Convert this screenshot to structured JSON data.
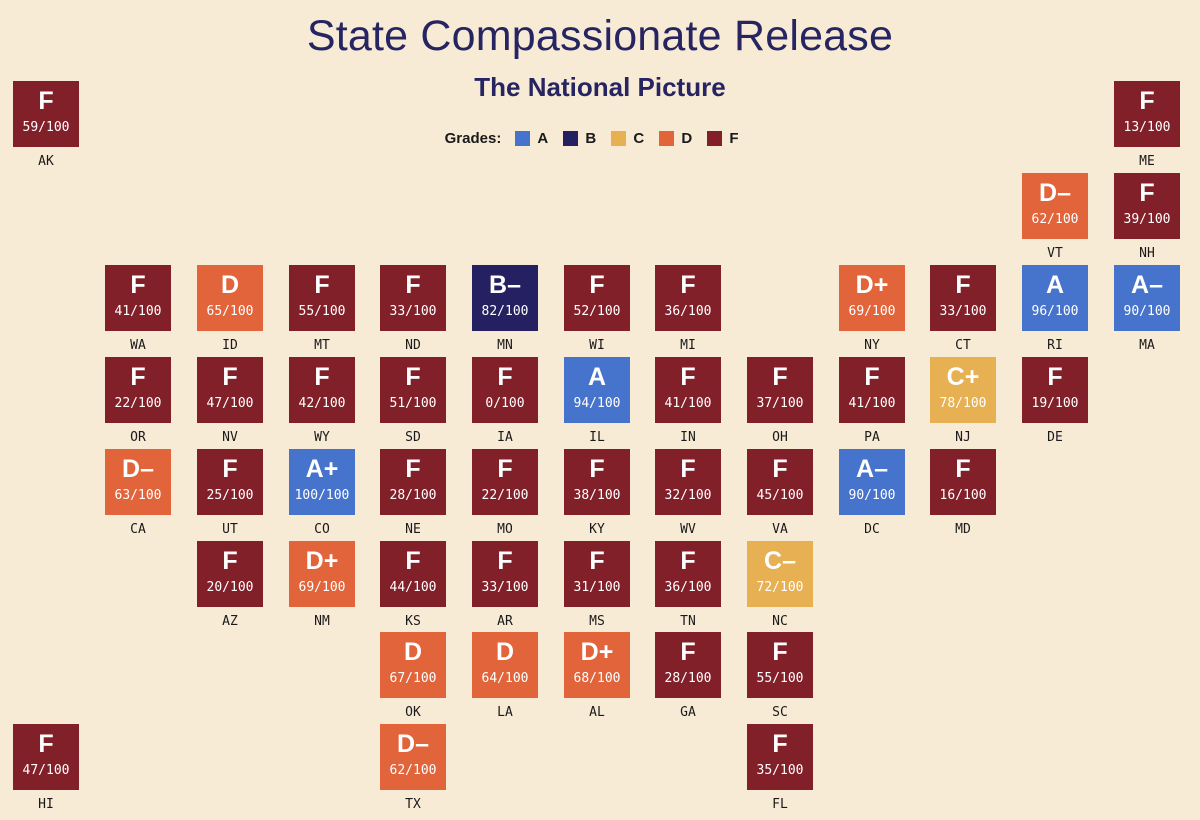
{
  "header": {
    "title": "State Compassionate Release",
    "subtitle": "The National Picture"
  },
  "legend": {
    "title": "Grades:",
    "items": [
      {
        "label": "A",
        "color": "#4673cb"
      },
      {
        "label": "B",
        "color": "#252061"
      },
      {
        "label": "C",
        "color": "#e7b052"
      },
      {
        "label": "D",
        "color": "#e1643a"
      },
      {
        "label": "F",
        "color": "#82202a"
      }
    ]
  },
  "colors": {
    "A": "#4673cb",
    "B": "#252061",
    "C": "#e7b052",
    "D": "#e1643a",
    "F": "#82202a"
  },
  "states": [
    {
      "abbr": "AK",
      "grade": "F",
      "score": "59/100"
    },
    {
      "abbr": "ME",
      "grade": "F",
      "score": "13/100"
    },
    {
      "abbr": "VT",
      "grade": "D–",
      "score": "62/100"
    },
    {
      "abbr": "NH",
      "grade": "F",
      "score": "39/100"
    },
    {
      "abbr": "WA",
      "grade": "F",
      "score": "41/100"
    },
    {
      "abbr": "ID",
      "grade": "D",
      "score": "65/100"
    },
    {
      "abbr": "MT",
      "grade": "F",
      "score": "55/100"
    },
    {
      "abbr": "ND",
      "grade": "F",
      "score": "33/100"
    },
    {
      "abbr": "MN",
      "grade": "B–",
      "score": "82/100"
    },
    {
      "abbr": "WI",
      "grade": "F",
      "score": "52/100"
    },
    {
      "abbr": "MI",
      "grade": "F",
      "score": "36/100"
    },
    {
      "abbr": "NY",
      "grade": "D+",
      "score": "69/100"
    },
    {
      "abbr": "CT",
      "grade": "F",
      "score": "33/100"
    },
    {
      "abbr": "RI",
      "grade": "A",
      "score": "96/100"
    },
    {
      "abbr": "MA",
      "grade": "A–",
      "score": "90/100"
    },
    {
      "abbr": "OR",
      "grade": "F",
      "score": "22/100"
    },
    {
      "abbr": "NV",
      "grade": "F",
      "score": "47/100"
    },
    {
      "abbr": "WY",
      "grade": "F",
      "score": "42/100"
    },
    {
      "abbr": "SD",
      "grade": "F",
      "score": "51/100"
    },
    {
      "abbr": "IA",
      "grade": "F",
      "score": "0/100"
    },
    {
      "abbr": "IL",
      "grade": "A",
      "score": "94/100"
    },
    {
      "abbr": "IN",
      "grade": "F",
      "score": "41/100"
    },
    {
      "abbr": "OH",
      "grade": "F",
      "score": "37/100"
    },
    {
      "abbr": "PA",
      "grade": "F",
      "score": "41/100"
    },
    {
      "abbr": "NJ",
      "grade": "C+",
      "score": "78/100"
    },
    {
      "abbr": "DE",
      "grade": "F",
      "score": "19/100"
    },
    {
      "abbr": "CA",
      "grade": "D–",
      "score": "63/100"
    },
    {
      "abbr": "UT",
      "grade": "F",
      "score": "25/100"
    },
    {
      "abbr": "CO",
      "grade": "A+",
      "score": "100/100"
    },
    {
      "abbr": "NE",
      "grade": "F",
      "score": "28/100"
    },
    {
      "abbr": "MO",
      "grade": "F",
      "score": "22/100"
    },
    {
      "abbr": "KY",
      "grade": "F",
      "score": "38/100"
    },
    {
      "abbr": "WV",
      "grade": "F",
      "score": "32/100"
    },
    {
      "abbr": "VA",
      "grade": "F",
      "score": "45/100"
    },
    {
      "abbr": "DC",
      "grade": "A–",
      "score": "90/100"
    },
    {
      "abbr": "MD",
      "grade": "F",
      "score": "16/100"
    },
    {
      "abbr": "AZ",
      "grade": "F",
      "score": "20/100"
    },
    {
      "abbr": "NM",
      "grade": "D+",
      "score": "69/100"
    },
    {
      "abbr": "KS",
      "grade": "F",
      "score": "44/100"
    },
    {
      "abbr": "AR",
      "grade": "F",
      "score": "33/100"
    },
    {
      "abbr": "MS",
      "grade": "F",
      "score": "31/100"
    },
    {
      "abbr": "TN",
      "grade": "F",
      "score": "36/100"
    },
    {
      "abbr": "NC",
      "grade": "C–",
      "score": "72/100"
    },
    {
      "abbr": "OK",
      "grade": "D",
      "score": "67/100"
    },
    {
      "abbr": "LA",
      "grade": "D",
      "score": "64/100"
    },
    {
      "abbr": "AL",
      "grade": "D+",
      "score": "68/100"
    },
    {
      "abbr": "GA",
      "grade": "F",
      "score": "28/100"
    },
    {
      "abbr": "SC",
      "grade": "F",
      "score": "55/100"
    },
    {
      "abbr": "HI",
      "grade": "F",
      "score": "47/100"
    },
    {
      "abbr": "TX",
      "grade": "D–",
      "score": "62/100"
    },
    {
      "abbr": "FL",
      "grade": "F",
      "score": "35/100"
    }
  ]
}
